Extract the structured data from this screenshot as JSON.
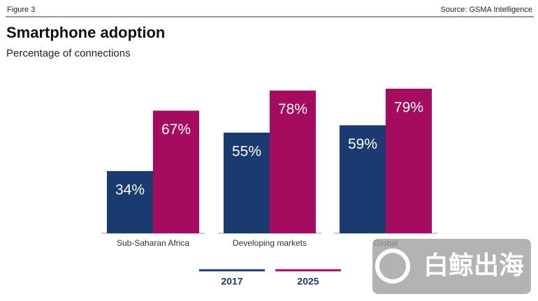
{
  "header": {
    "figure": "Figure 3",
    "source": "Source: GSMA Intelligence"
  },
  "chart_data": {
    "type": "bar",
    "title": "Smartphone adoption",
    "subtitle": "Percentage of connections",
    "categories": [
      "Sub-Saharan Africa",
      "Developing markets",
      "Global"
    ],
    "series": [
      {
        "name": "2017",
        "color": "#1b3a6f",
        "values": [
          34,
          55,
          59
        ],
        "value_labels": [
          "34%",
          "55%",
          "59%"
        ]
      },
      {
        "name": "2025",
        "color": "#a50b5e",
        "values": [
          67,
          78,
          79
        ],
        "value_labels": [
          "67%",
          "78%",
          "79%"
        ]
      }
    ]
  },
  "watermark": "白鲸出海"
}
